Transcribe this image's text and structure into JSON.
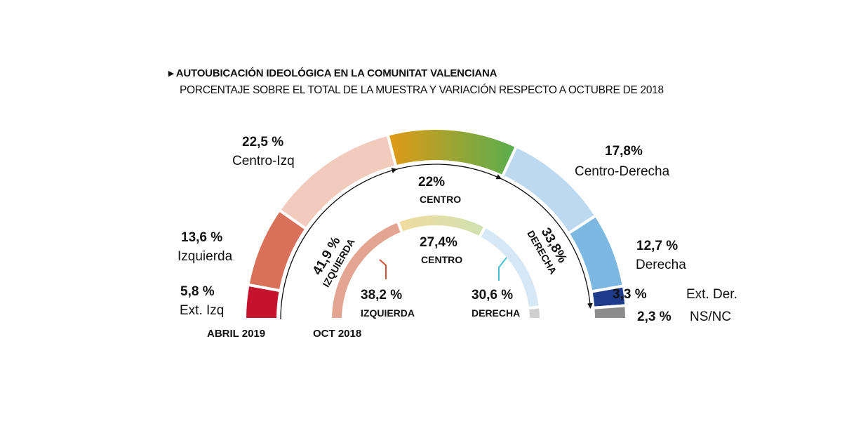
{
  "title": "AUTOUBICACIÓN IDEOLÓGICA EN LA COMUNITAT VALENCIANA",
  "subtitle": "PORCENTAJE SOBRE EL TOTAL DE LA MUESTRA Y VARIACIÓN RESPECTO A OCTUBRE DE 2018",
  "chart_data": [
    {
      "type": "pie",
      "shape": "semicircle-donut",
      "series_label": "ABRIL 2019",
      "categories": [
        "Ext. Izq",
        "Izquierda",
        "Centro-Izq",
        "Centro",
        "Centro-Derecha",
        "Derecha",
        "Ext. Der.",
        "NS/NC"
      ],
      "values": [
        5.8,
        13.6,
        22.5,
        22,
        17.8,
        12.7,
        3.3,
        2.3
      ],
      "value_labels": [
        "5,8 %",
        "13,6 %",
        "22,5 %",
        "",
        "17,8%",
        "12,7 %",
        "3,3 %",
        "2,3 %"
      ],
      "colors": [
        "#c5122d",
        "#d8705a",
        "#f2cbbd",
        "gradient:#e39a16-#57ae4f",
        "#bcd9f0",
        "#7db8e2",
        "#1d3a8b",
        "#8c8c8c"
      ],
      "groups": [
        {
          "label": "IZQUIERDA",
          "value_label": "41,9 %",
          "value": 41.9
        },
        {
          "label": "CENTRO",
          "value_label": "22%",
          "value": 22
        },
        {
          "label": "DERECHA",
          "value_label": "33,8%",
          "value": 33.8
        }
      ]
    },
    {
      "type": "pie",
      "shape": "semicircle-donut",
      "series_label": "OCT 2018",
      "categories": [
        "IZQUIERDA",
        "CENTRO",
        "DERECHA",
        ""
      ],
      "values": [
        38.2,
        27.4,
        30.6,
        3.8
      ],
      "value_labels": [
        "38,2 %",
        "27,4%",
        "30,6 %",
        ""
      ],
      "colors": [
        "#e3a592",
        "gradient:#f1dc9f-#cfe1b1",
        "#d6e7f5",
        "#cfcfcf"
      ]
    }
  ]
}
